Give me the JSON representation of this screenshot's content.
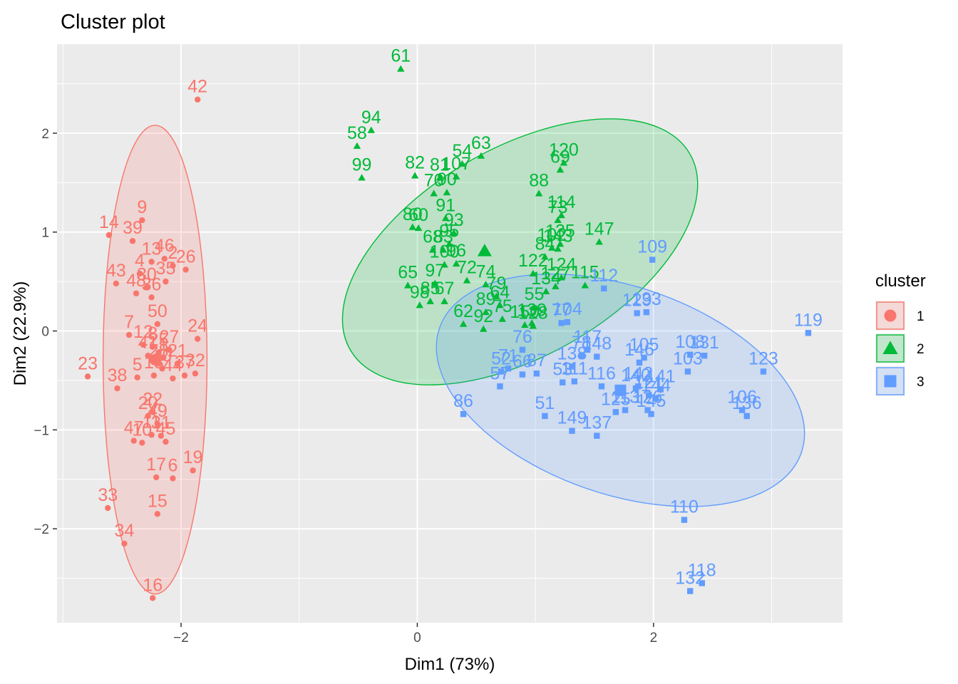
{
  "chart_data": {
    "type": "scatter",
    "title": "Cluster plot",
    "xlabel": "Dim1 (73%)",
    "ylabel": "Dim2 (22.9%)",
    "xlim": [
      -3.05,
      3.6
    ],
    "ylim": [
      -2.95,
      2.9
    ],
    "x_ticks": [
      -2,
      0,
      2
    ],
    "y_ticks": [
      -2,
      -1,
      0,
      1,
      2
    ],
    "grid": true,
    "legend": {
      "title": "cluster",
      "placement": "right",
      "entries": [
        {
          "label": "1",
          "color": "#F8766D",
          "shape": "circle"
        },
        {
          "label": "2",
          "color": "#00BA38",
          "shape": "triangle"
        },
        {
          "label": "3",
          "color": "#619CFF",
          "shape": "square"
        }
      ]
    },
    "clusters": [
      {
        "name": "1",
        "color": "#F8766D",
        "shape": "circle",
        "centroid": [
          -2.22,
          -0.29
        ],
        "ellipse": {
          "cx": -2.22,
          "cy": -0.29,
          "rx": 0.44,
          "ry": 2.37,
          "angle_deg": 0
        },
        "points": [
          {
            "id": "42",
            "x": -1.86,
            "y": 2.34
          },
          {
            "id": "14",
            "x": -2.61,
            "y": 0.97
          },
          {
            "id": "39",
            "x": -2.41,
            "y": 0.91
          },
          {
            "id": "9",
            "x": -2.33,
            "y": 1.12
          },
          {
            "id": "13",
            "x": -2.25,
            "y": 0.7
          },
          {
            "id": "46",
            "x": -2.14,
            "y": 0.73
          },
          {
            "id": "2",
            "x": -2.07,
            "y": 0.66
          },
          {
            "id": "26",
            "x": -1.96,
            "y": 0.62
          },
          {
            "id": "43",
            "x": -2.55,
            "y": 0.48
          },
          {
            "id": "4",
            "x": -2.35,
            "y": 0.58
          },
          {
            "id": "48",
            "x": -2.38,
            "y": 0.38
          },
          {
            "id": "30",
            "x": -2.29,
            "y": 0.44
          },
          {
            "id": "35",
            "x": -2.13,
            "y": 0.5
          },
          {
            "id": "36",
            "x": -2.25,
            "y": 0.34
          },
          {
            "id": "7",
            "x": -2.44,
            "y": -0.04
          },
          {
            "id": "50",
            "x": -2.2,
            "y": 0.07
          },
          {
            "id": "12",
            "x": -2.32,
            "y": -0.14
          },
          {
            "id": "25",
            "x": -2.19,
            "y": -0.22
          },
          {
            "id": "8",
            "x": -2.24,
            "y": -0.16
          },
          {
            "id": "27",
            "x": -2.1,
            "y": -0.19
          },
          {
            "id": "24",
            "x": -1.86,
            "y": -0.08
          },
          {
            "id": "23",
            "x": -2.79,
            "y": -0.46
          },
          {
            "id": "38",
            "x": -2.54,
            "y": -0.58
          },
          {
            "id": "5",
            "x": -2.37,
            "y": -0.47
          },
          {
            "id": "41",
            "x": -2.28,
            "y": -0.25
          },
          {
            "id": "28",
            "x": -2.19,
            "y": -0.33
          },
          {
            "id": "40",
            "x": -2.16,
            "y": -0.38
          },
          {
            "id": "18",
            "x": -2.23,
            "y": -0.45
          },
          {
            "id": "1",
            "x": -2.15,
            "y": -0.27
          },
          {
            "id": "21",
            "x": -2.03,
            "y": -0.33
          },
          {
            "id": "44",
            "x": -2.07,
            "y": -0.48
          },
          {
            "id": "37",
            "x": -1.97,
            "y": -0.45
          },
          {
            "id": "32",
            "x": -1.88,
            "y": -0.43
          },
          {
            "id": "22",
            "x": -2.24,
            "y": -0.82
          },
          {
            "id": "20",
            "x": -2.28,
            "y": -0.86
          },
          {
            "id": "49",
            "x": -2.2,
            "y": -0.94
          },
          {
            "id": "47",
            "x": -2.4,
            "y": -1.11
          },
          {
            "id": "10",
            "x": -2.33,
            "y": -1.13
          },
          {
            "id": "11",
            "x": -2.25,
            "y": -1.05
          },
          {
            "id": "31",
            "x": -2.17,
            "y": -1.06
          },
          {
            "id": "45",
            "x": -2.13,
            "y": -1.12
          },
          {
            "id": "19",
            "x": -1.9,
            "y": -1.41
          },
          {
            "id": "17",
            "x": -2.21,
            "y": -1.48
          },
          {
            "id": "6",
            "x": -2.07,
            "y": -1.49
          },
          {
            "id": "33",
            "x": -2.62,
            "y": -1.79
          },
          {
            "id": "15",
            "x": -2.2,
            "y": -1.85
          },
          {
            "id": "34",
            "x": -2.48,
            "y": -2.15
          },
          {
            "id": "16",
            "x": -2.24,
            "y": -2.7
          }
        ]
      },
      {
        "name": "2",
        "color": "#00BA38",
        "shape": "triangle",
        "centroid": [
          0.57,
          0.81
        ],
        "ellipse": {
          "cx": 0.87,
          "cy": 0.8,
          "rx": 1.66,
          "ry": 1.05,
          "angle_deg": -30
        },
        "points": [
          {
            "id": "61",
            "x": -0.14,
            "y": 2.65
          },
          {
            "id": "94",
            "x": -0.39,
            "y": 2.03
          },
          {
            "id": "58",
            "x": -0.51,
            "y": 1.87
          },
          {
            "id": "99",
            "x": -0.47,
            "y": 1.55
          },
          {
            "id": "54",
            "x": 0.38,
            "y": 1.69
          },
          {
            "id": "63",
            "x": 0.54,
            "y": 1.77
          },
          {
            "id": "82",
            "x": -0.02,
            "y": 1.57
          },
          {
            "id": "81",
            "x": 0.19,
            "y": 1.55
          },
          {
            "id": "107",
            "x": 0.33,
            "y": 1.56
          },
          {
            "id": "70",
            "x": 0.14,
            "y": 1.39
          },
          {
            "id": "90",
            "x": 0.25,
            "y": 1.4
          },
          {
            "id": "120",
            "x": 1.24,
            "y": 1.7
          },
          {
            "id": "69",
            "x": 1.21,
            "y": 1.63
          },
          {
            "id": "88",
            "x": 1.03,
            "y": 1.39
          },
          {
            "id": "114",
            "x": 1.22,
            "y": 1.17
          },
          {
            "id": "73",
            "x": 1.19,
            "y": 1.12
          },
          {
            "id": "147",
            "x": 1.54,
            "y": 0.9
          },
          {
            "id": "80",
            "x": -0.04,
            "y": 1.05
          },
          {
            "id": "60",
            "x": 0.01,
            "y": 1.04
          },
          {
            "id": "91",
            "x": 0.24,
            "y": 1.14
          },
          {
            "id": "93",
            "x": 0.31,
            "y": 0.99
          },
          {
            "id": "68",
            "x": 0.13,
            "y": 0.82
          },
          {
            "id": "83",
            "x": 0.22,
            "y": 0.82
          },
          {
            "id": "95",
            "x": 0.27,
            "y": 0.88
          },
          {
            "id": "100",
            "x": 0.23,
            "y": 0.67
          },
          {
            "id": "96",
            "x": 0.33,
            "y": 0.68
          },
          {
            "id": "135",
            "x": 1.21,
            "y": 0.88
          },
          {
            "id": "102",
            "x": 1.14,
            "y": 0.84
          },
          {
            "id": "143",
            "x": 1.19,
            "y": 0.83
          },
          {
            "id": "84",
            "x": 1.08,
            "y": 0.75
          },
          {
            "id": "122",
            "x": 0.98,
            "y": 0.58
          },
          {
            "id": "65",
            "x": -0.08,
            "y": 0.46
          },
          {
            "id": "97",
            "x": 0.15,
            "y": 0.48
          },
          {
            "id": "85",
            "x": 0.11,
            "y": 0.3
          },
          {
            "id": "72",
            "x": 0.42,
            "y": 0.51
          },
          {
            "id": "74",
            "x": 0.58,
            "y": 0.47
          },
          {
            "id": "124",
            "x": 1.22,
            "y": 0.54
          },
          {
            "id": "115",
            "x": 1.42,
            "y": 0.46
          },
          {
            "id": "98",
            "x": 0.02,
            "y": 0.26
          },
          {
            "id": "67",
            "x": 0.23,
            "y": 0.3
          },
          {
            "id": "79",
            "x": 0.67,
            "y": 0.35
          },
          {
            "id": "64",
            "x": 0.7,
            "y": 0.26
          },
          {
            "id": "134",
            "x": 1.09,
            "y": 0.4
          },
          {
            "id": "127",
            "x": 1.17,
            "y": 0.45
          },
          {
            "id": "55",
            "x": 0.99,
            "y": 0.24
          },
          {
            "id": "62",
            "x": 0.39,
            "y": 0.07
          },
          {
            "id": "89",
            "x": 0.58,
            "y": 0.19
          },
          {
            "id": "92",
            "x": 0.56,
            "y": 0.02
          },
          {
            "id": "75",
            "x": 0.72,
            "y": 0.12
          },
          {
            "id": "150",
            "x": 0.91,
            "y": 0.06
          },
          {
            "id": "139",
            "x": 0.97,
            "y": 0.08
          },
          {
            "id": "128",
            "x": 0.98,
            "y": 0.05
          }
        ]
      },
      {
        "name": "3",
        "color": "#619CFF",
        "shape": "square",
        "centroid": [
          1.72,
          -0.6
        ],
        "ellipse": {
          "cx": 1.72,
          "cy": -0.6,
          "rx": 1.62,
          "ry": 1.05,
          "angle_deg": 19
        },
        "points": [
          {
            "id": "109",
            "x": 1.99,
            "y": 0.72
          },
          {
            "id": "119",
            "x": 3.31,
            "y": -0.02
          },
          {
            "id": "112",
            "x": 1.58,
            "y": 0.43
          },
          {
            "id": "129",
            "x": 1.86,
            "y": 0.18
          },
          {
            "id": "133",
            "x": 1.94,
            "y": 0.19
          },
          {
            "id": "104",
            "x": 1.27,
            "y": 0.09
          },
          {
            "id": "77",
            "x": 1.22,
            "y": 0.08
          },
          {
            "id": "131",
            "x": 2.43,
            "y": -0.25
          },
          {
            "id": "123",
            "x": 2.93,
            "y": -0.41
          },
          {
            "id": "108",
            "x": 2.31,
            "y": -0.24
          },
          {
            "id": "103",
            "x": 2.29,
            "y": -0.41
          },
          {
            "id": "105",
            "x": 1.92,
            "y": -0.27
          },
          {
            "id": "146",
            "x": 1.88,
            "y": -0.32
          },
          {
            "id": "117",
            "x": 1.44,
            "y": -0.19
          },
          {
            "id": "148",
            "x": 1.52,
            "y": -0.26
          },
          {
            "id": "78",
            "x": 1.39,
            "y": -0.25
          },
          {
            "id": "138",
            "x": 1.31,
            "y": -0.36
          },
          {
            "id": "76",
            "x": 0.89,
            "y": -0.19
          },
          {
            "id": "71",
            "x": 0.77,
            "y": -0.38
          },
          {
            "id": "66",
            "x": 0.89,
            "y": -0.44
          },
          {
            "id": "87",
            "x": 1.01,
            "y": -0.43
          },
          {
            "id": "52",
            "x": 0.71,
            "y": -0.41
          },
          {
            "id": "57",
            "x": 0.7,
            "y": -0.56
          },
          {
            "id": "53",
            "x": 1.23,
            "y": -0.52
          },
          {
            "id": "111",
            "x": 1.33,
            "y": -0.51
          },
          {
            "id": "116",
            "x": 1.56,
            "y": -0.56
          },
          {
            "id": "140",
            "x": 1.85,
            "y": -0.58
          },
          {
            "id": "142",
            "x": 1.87,
            "y": -0.56
          },
          {
            "id": "121",
            "x": 1.96,
            "y": -0.65
          },
          {
            "id": "144",
            "x": 2.02,
            "y": -0.68
          },
          {
            "id": "141",
            "x": 2.06,
            "y": -0.59
          },
          {
            "id": "145",
            "x": 1.98,
            "y": -0.84
          },
          {
            "id": "86",
            "x": 0.39,
            "y": -0.84
          },
          {
            "id": "51",
            "x": 1.08,
            "y": -0.86
          },
          {
            "id": "149",
            "x": 1.31,
            "y": -1.01
          },
          {
            "id": "137",
            "x": 1.52,
            "y": -1.06
          },
          {
            "id": "125",
            "x": 1.68,
            "y": -0.82
          },
          {
            "id": "113",
            "x": 1.76,
            "y": -0.8
          },
          {
            "id": "126",
            "x": 1.95,
            "y": -0.8
          },
          {
            "id": "106",
            "x": 2.75,
            "y": -0.8
          },
          {
            "id": "136",
            "x": 2.79,
            "y": -0.86
          },
          {
            "id": "110",
            "x": 2.26,
            "y": -1.91
          },
          {
            "id": "118",
            "x": 2.41,
            "y": -2.55
          },
          {
            "id": "132",
            "x": 2.31,
            "y": -2.63
          }
        ]
      }
    ]
  }
}
